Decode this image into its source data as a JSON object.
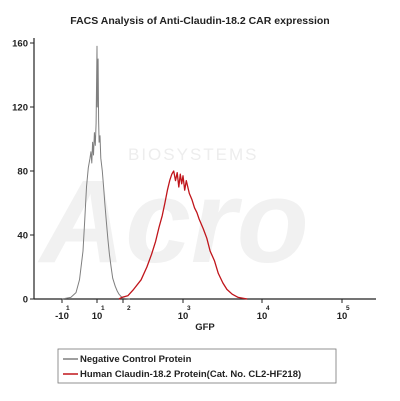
{
  "chart_data": {
    "type": "line",
    "title": "FACS Analysis of Anti-Claudin-18.2 CAR expression",
    "xlabel": "GFP",
    "ylabel": "",
    "x_scale": "biexponential",
    "ylim": [
      0,
      160
    ],
    "y_ticks": [
      {
        "value": 0,
        "label": "0"
      },
      {
        "value": 40,
        "label": "40"
      },
      {
        "value": 80,
        "label": "80"
      },
      {
        "value": 120,
        "label": "120"
      },
      {
        "value": 160,
        "label": "160"
      }
    ],
    "x_ticks": [
      {
        "value": -10,
        "base": "-10",
        "exp": "1"
      },
      {
        "value": 10,
        "base": "10",
        "exp": "1"
      },
      {
        "value": 100,
        "base": "",
        "exp": "2"
      },
      {
        "value": 1000,
        "base": "10",
        "exp": "3"
      },
      {
        "value": 10000,
        "base": "10",
        "exp": "4"
      },
      {
        "value": 100000,
        "base": "10",
        "exp": "5"
      }
    ],
    "grid": false,
    "legend_position": "bottom-left",
    "series": [
      {
        "name": "Negative Control Protein",
        "color": "#7f7f7f",
        "points": [
          [
            -10,
            0
          ],
          [
            -5,
            1
          ],
          [
            -2,
            4
          ],
          [
            0,
            12
          ],
          [
            2,
            30
          ],
          [
            3,
            50
          ],
          [
            4,
            70
          ],
          [
            5,
            82
          ],
          [
            6,
            88
          ],
          [
            6.5,
            92
          ],
          [
            7,
            85
          ],
          [
            7.5,
            98
          ],
          [
            8,
            90
          ],
          [
            8.5,
            104
          ],
          [
            9,
            96
          ],
          [
            9.5,
            110
          ],
          [
            10,
            158
          ],
          [
            10.3,
            120
          ],
          [
            11,
            150
          ],
          [
            11.5,
            112
          ],
          [
            12,
            98
          ],
          [
            13,
            102
          ],
          [
            14,
            88
          ],
          [
            16,
            80
          ],
          [
            18,
            70
          ],
          [
            20,
            60
          ],
          [
            23,
            48
          ],
          [
            26,
            38
          ],
          [
            30,
            28
          ],
          [
            35,
            20
          ],
          [
            40,
            13
          ],
          [
            50,
            8
          ],
          [
            60,
            5
          ],
          [
            70,
            3
          ],
          [
            85,
            1.5
          ],
          [
            100,
            0.5
          ],
          [
            130,
            0
          ]
        ]
      },
      {
        "name": "Human Claudin-18.2 Protein(Cat. No. CL2-HF218)",
        "color": "#c0151b",
        "points": [
          [
            70,
            0
          ],
          [
            90,
            1
          ],
          [
            120,
            2
          ],
          [
            150,
            6
          ],
          [
            200,
            12
          ],
          [
            250,
            20
          ],
          [
            300,
            28
          ],
          [
            350,
            36
          ],
          [
            400,
            45
          ],
          [
            450,
            52
          ],
          [
            500,
            60
          ],
          [
            550,
            68
          ],
          [
            600,
            74
          ],
          [
            650,
            78
          ],
          [
            700,
            80
          ],
          [
            750,
            74
          ],
          [
            800,
            79
          ],
          [
            850,
            70
          ],
          [
            900,
            78
          ],
          [
            950,
            72
          ],
          [
            1000,
            77
          ],
          [
            1050,
            68
          ],
          [
            1100,
            74
          ],
          [
            1200,
            66
          ],
          [
            1300,
            62
          ],
          [
            1400,
            57
          ],
          [
            1500,
            54
          ],
          [
            1600,
            50
          ],
          [
            1800,
            44
          ],
          [
            2000,
            38
          ],
          [
            2200,
            30
          ],
          [
            2500,
            24
          ],
          [
            2800,
            16
          ],
          [
            3200,
            10
          ],
          [
            3600,
            6
          ],
          [
            4200,
            3
          ],
          [
            5000,
            1
          ],
          [
            6500,
            0
          ]
        ]
      }
    ]
  },
  "legend": {
    "items": [
      {
        "label": "Negative Control Protein",
        "color": "#7f7f7f"
      },
      {
        "label": "Human Claudin-18.2 Protein(Cat. No. CL2-HF218)",
        "color": "#c0151b"
      }
    ]
  },
  "watermark": {
    "logo": "Acro",
    "text": "BIOSYSTEMS"
  }
}
